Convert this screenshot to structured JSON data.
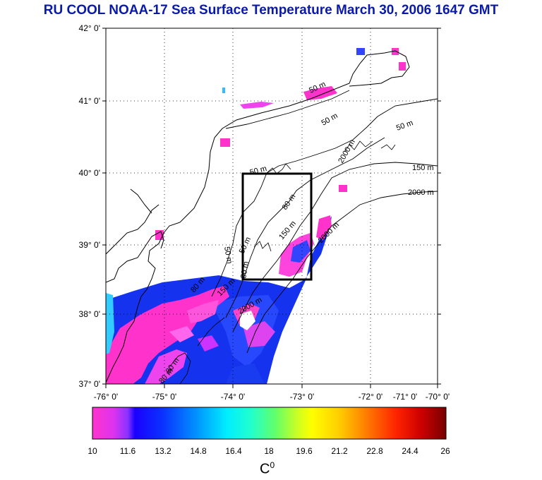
{
  "title": "RU COOL  NOAA-17 Sea Surface Temperature March 30, 2006 1647 GMT",
  "map": {
    "lat_ticks": [
      "42° 0'",
      "41° 0'",
      "40° 0'",
      "39° 0'",
      "38° 0'",
      "37° 0'"
    ],
    "lon_ticks": [
      "-76° 0'",
      "-75° 0'",
      "-74° 0'",
      "-73° 0'",
      "-72° 0'",
      "-71° 0'",
      "-70° 0'"
    ],
    "contour_labels": [
      "50 m",
      "50 m",
      "50 m",
      "150 m",
      "2000 m",
      "2000 m",
      "80 m",
      "150 m",
      "2000 m",
      "50 m",
      "50 m",
      "150 m",
      "2000 m",
      "80 m",
      "80 m",
      "50 m",
      "80 m",
      "80 m"
    ]
  },
  "colorbar": {
    "ticks": [
      "10",
      "11.6",
      "13.2",
      "14.8",
      "16.4",
      "18",
      "19.6",
      "21.2",
      "22.8",
      "24.4",
      "26"
    ],
    "unit": "C",
    "unit_sup": "0"
  }
}
